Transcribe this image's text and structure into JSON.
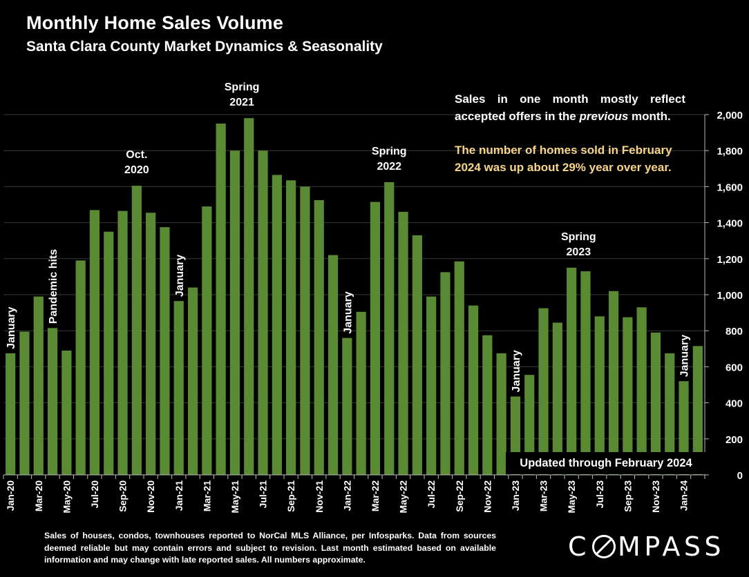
{
  "header": {
    "title": "Monthly Home Sales Volume",
    "subtitle": "Santa Clara County Market Dynamics & Seasonality"
  },
  "notes": {
    "line1": "Sales in one month mostly reflect",
    "line2_pre": "accepted offers in the ",
    "line2_em": "previous",
    "line2_post": " month.",
    "yoy": "The number of homes sold in February 2024 was up about 29% year over year.",
    "updated": "Updated through February 2024"
  },
  "footnote": "Sales of houses, condos, townhouses reported to NorCal MLS Alliance, per Infosparks. Data from sources deemed reliable but may contain errors and subject to revision. Last month estimated based on available information and may change with late reported sales. All numbers approximate.",
  "logo": {
    "pre": "C",
    "post": "MPASS"
  },
  "colors": {
    "bar": "#5a8a34",
    "background": "#000000",
    "grid": "#3a3a3a",
    "highlight": "#f7d58c"
  },
  "chart_data": {
    "type": "bar",
    "title": "Monthly Home Sales Volume",
    "subtitle": "Santa Clara County Market Dynamics & Seasonality",
    "ylim": [
      0,
      2000
    ],
    "yticks": [
      0,
      200,
      400,
      600,
      800,
      1000,
      1200,
      1400,
      1600,
      1800,
      2000
    ],
    "ytick_labels": [
      "0",
      "200",
      "400",
      "600",
      "800",
      "1,000",
      "1,200",
      "1,400",
      "1,600",
      "1,800",
      "2,000"
    ],
    "y_axis_side": "right",
    "grid": true,
    "categories": [
      "Jan-20",
      "Feb-20",
      "Mar-20",
      "Apr-20",
      "May-20",
      "Jun-20",
      "Jul-20",
      "Aug-20",
      "Sep-20",
      "Oct-20",
      "Nov-20",
      "Dec-20",
      "Jan-21",
      "Feb-21",
      "Mar-21",
      "Apr-21",
      "May-21",
      "Jun-21",
      "Jul-21",
      "Aug-21",
      "Sep-21",
      "Oct-21",
      "Nov-21",
      "Dec-21",
      "Jan-22",
      "Feb-22",
      "Mar-22",
      "Apr-22",
      "May-22",
      "Jun-22",
      "Jul-22",
      "Aug-22",
      "Sep-22",
      "Oct-22",
      "Nov-22",
      "Dec-22",
      "Jan-23",
      "Feb-23",
      "Mar-23",
      "Apr-23",
      "May-23",
      "Jun-23",
      "Jul-23",
      "Aug-23",
      "Sep-23",
      "Oct-23",
      "Nov-23",
      "Dec-23",
      "Jan-24",
      "Feb-24"
    ],
    "x_tick_labels": [
      "Jan-20",
      "Mar-20",
      "May-20",
      "Jul-20",
      "Sep-20",
      "Nov-20",
      "Jan-21",
      "Mar-21",
      "May-21",
      "Jul-21",
      "Sep-21",
      "Nov-21",
      "Jan-22",
      "Mar-22",
      "May-22",
      "Jul-22",
      "Sep-22",
      "Nov-22",
      "Jan-23",
      "Mar-23",
      "May-23",
      "Jul-23",
      "Sep-23",
      "Nov-23",
      "Jan-24"
    ],
    "values": [
      675,
      795,
      990,
      815,
      690,
      1190,
      1470,
      1350,
      1465,
      1605,
      1455,
      1375,
      965,
      1040,
      1490,
      1950,
      1800,
      1980,
      1800,
      1665,
      1635,
      1600,
      1525,
      1220,
      760,
      905,
      1515,
      1625,
      1460,
      1330,
      990,
      1125,
      1185,
      940,
      775,
      675,
      435,
      555,
      925,
      845,
      1150,
      1130,
      880,
      1020,
      875,
      930,
      790,
      675,
      520,
      715
    ],
    "annotations": [
      {
        "text": "January",
        "index": 0,
        "orientation": "vertical"
      },
      {
        "text": "Pandemic hits",
        "index": 3,
        "orientation": "vertical"
      },
      {
        "text": "Oct.\n2020",
        "index": 9,
        "orientation": "horizontal"
      },
      {
        "text": "January",
        "index": 12,
        "orientation": "vertical"
      },
      {
        "text": "Spring\n2021",
        "index": 16.5,
        "orientation": "horizontal"
      },
      {
        "text": "January",
        "index": 24,
        "orientation": "vertical"
      },
      {
        "text": "Spring\n2022",
        "index": 27,
        "orientation": "horizontal"
      },
      {
        "text": "January",
        "index": 36,
        "orientation": "vertical"
      },
      {
        "text": "Spring\n2023",
        "index": 40.5,
        "orientation": "horizontal"
      },
      {
        "text": "January",
        "index": 48,
        "orientation": "vertical"
      }
    ]
  }
}
